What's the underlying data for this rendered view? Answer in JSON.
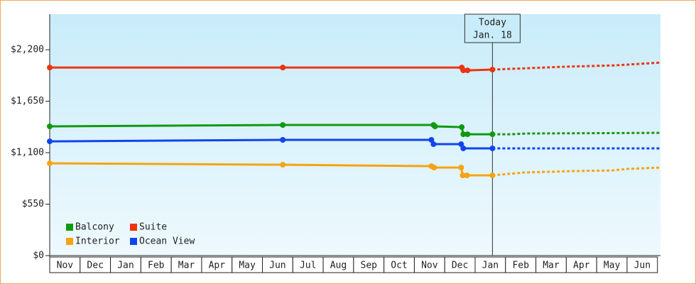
{
  "chart_data": {
    "type": "line",
    "xlim": [
      0,
      20.1
    ],
    "ylim": [
      0,
      2580
    ],
    "xticks": [
      {
        "value": 0.5,
        "label": "Nov"
      },
      {
        "value": 1.5,
        "label": "Dec"
      },
      {
        "value": 2.5,
        "label": "Jan"
      },
      {
        "value": 3.5,
        "label": "Feb"
      },
      {
        "value": 4.5,
        "label": "Mar"
      },
      {
        "value": 5.5,
        "label": "Apr"
      },
      {
        "value": 6.5,
        "label": "May"
      },
      {
        "value": 7.5,
        "label": "Jun"
      },
      {
        "value": 8.5,
        "label": "Jul"
      },
      {
        "value": 9.5,
        "label": "Aug"
      },
      {
        "value": 10.5,
        "label": "Sep"
      },
      {
        "value": 11.5,
        "label": "Oct"
      },
      {
        "value": 12.5,
        "label": "Nov"
      },
      {
        "value": 13.5,
        "label": "Dec"
      },
      {
        "value": 14.5,
        "label": "Jan"
      },
      {
        "value": 15.5,
        "label": "Feb"
      },
      {
        "value": 16.5,
        "label": "Mar"
      },
      {
        "value": 17.5,
        "label": "Apr"
      },
      {
        "value": 18.5,
        "label": "May"
      },
      {
        "value": 19.5,
        "label": "Jun"
      }
    ],
    "yticks": [
      {
        "value": 0,
        "label": "$0"
      },
      {
        "value": 550,
        "label": "$550"
      },
      {
        "value": 1100,
        "label": "$1,100"
      },
      {
        "value": 1650,
        "label": "$1,650"
      },
      {
        "value": 2200,
        "label": "$2,200"
      }
    ],
    "today_x": 14.57,
    "today_label": "Today",
    "today_date": "Jan. 18",
    "legend": "lower left",
    "series": [
      {
        "name": "Balcony",
        "color": "#119911",
        "x": [
          0,
          7.67,
          12.63,
          12.68,
          13.56,
          13.61,
          13.75,
          14.57,
          15.2,
          15.7,
          20.1
        ],
        "values": [
          1381,
          1396,
          1396,
          1381,
          1373,
          1297,
          1297,
          1297,
          1297,
          1305,
          1312
        ]
      },
      {
        "name": "Suite",
        "color": "#ee3311",
        "x": [
          0,
          7.67,
          13.56,
          13.61,
          13.75,
          14.57,
          16.9,
          18.6,
          20.1
        ],
        "values": [
          2010,
          2010,
          2010,
          1980,
          1980,
          1988,
          2018,
          2033,
          2063
        ]
      },
      {
        "name": "Interior",
        "color": "#f5a311",
        "x": [
          0,
          7.67,
          12.56,
          12.65,
          13.54,
          13.59,
          13.73,
          14.57,
          15.6,
          17.2,
          18.5,
          19.0,
          20.1
        ],
        "values": [
          986,
          971,
          956,
          941,
          941,
          857,
          857,
          857,
          888,
          903,
          910,
          926,
          941
        ]
      },
      {
        "name": "Ocean View",
        "color": "#1144ee",
        "x": [
          0,
          7.67,
          12.56,
          12.63,
          13.54,
          13.61,
          14.57,
          20.1
        ],
        "values": [
          1221,
          1237,
          1237,
          1191,
          1191,
          1146,
          1146,
          1146
        ]
      }
    ]
  }
}
